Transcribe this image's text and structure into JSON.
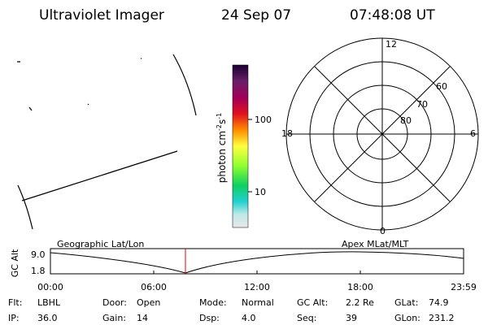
{
  "header": {
    "title": "Ultraviolet Imager",
    "date": "24 Sep 07",
    "time": "07:48:08 UT"
  },
  "colorbar": {
    "label": {
      "text": "photon cm",
      "exp1": "-2",
      "unit2": "s",
      "exp2": "-1"
    },
    "ticks": [
      "100",
      "10"
    ]
  },
  "polar": {
    "mlt_labels": {
      "top": "12",
      "bottom": "0",
      "left": "18",
      "right": "6"
    },
    "lat_labels": [
      "60",
      "70",
      "80"
    ]
  },
  "orbit_plot": {
    "ylabel": "GC Alt",
    "yticks": [
      "9.0",
      "1.8"
    ],
    "left_title": "Geographic Lat/Lon",
    "right_title": "Apex MLat/MLT",
    "xticks": [
      "00:00",
      "06:00",
      "12:00",
      "18:00",
      "23:59"
    ]
  },
  "info": [
    [
      {
        "label": "Flt:",
        "value": "LBHL"
      },
      {
        "label": "Door:",
        "value": "Open"
      },
      {
        "label": "Mode:",
        "value": "Normal"
      },
      {
        "label": "GC Alt:",
        "value": "2.2 Re"
      },
      {
        "label": "GLat:",
        "value": "74.9"
      }
    ],
    [
      {
        "label": "IP:",
        "value": "36.0"
      },
      {
        "label": "Gain:",
        "value": "14"
      },
      {
        "label": "Dsp:",
        "value": "4.0"
      },
      {
        "label": "Seq:",
        "value": "39"
      },
      {
        "label": "GLon:",
        "value": "231.2"
      }
    ]
  ]
}
